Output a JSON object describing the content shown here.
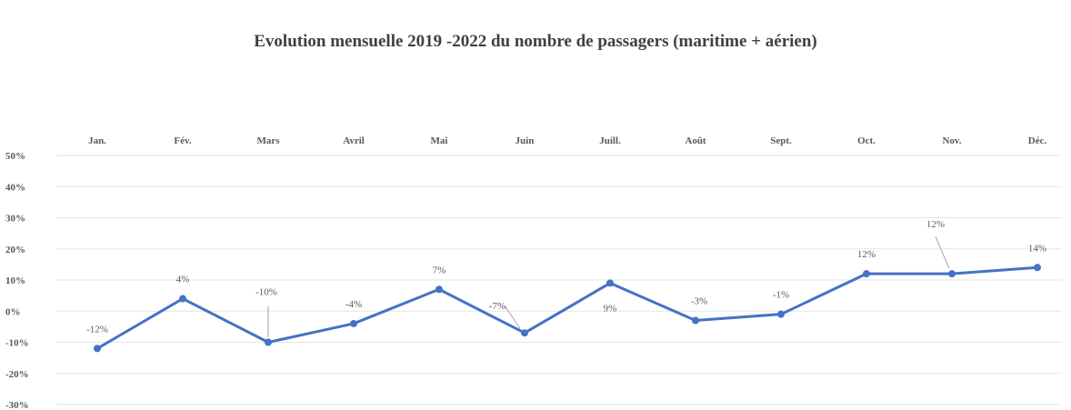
{
  "chart_data": {
    "type": "line",
    "title": "Evolution mensuelle 2019 -2022 du nombre de passagers (maritime + aérien)",
    "xlabel": "",
    "ylabel": "",
    "categories": [
      "Jan.",
      "Fév.",
      "Mars",
      "Avril",
      "Mai",
      "Juin",
      "Juill.",
      "Août",
      "Sept.",
      "Oct.",
      "Nov.",
      "Déc."
    ],
    "series": [
      {
        "values": [
          -12,
          4,
          -10,
          -4,
          7,
          -7,
          9,
          -3,
          -1,
          12,
          12,
          14
        ]
      }
    ],
    "data_labels": [
      "-12%",
      "4%",
      "-10%",
      "-4%",
      "7%",
      "-7%",
      "9%",
      "-3%",
      "-1%",
      "12%",
      "12%",
      "14%"
    ],
    "y_tick_labels": [
      "50%",
      "40%",
      "30%",
      "20%",
      "10%",
      "0%",
      "-10%",
      "-20%",
      "-30%"
    ],
    "ylim": [
      -30,
      50
    ],
    "x_axis_position": "top",
    "grid": true,
    "legend": "none",
    "line_color": "#4472c4",
    "grid_color": "#e6e6e6"
  }
}
